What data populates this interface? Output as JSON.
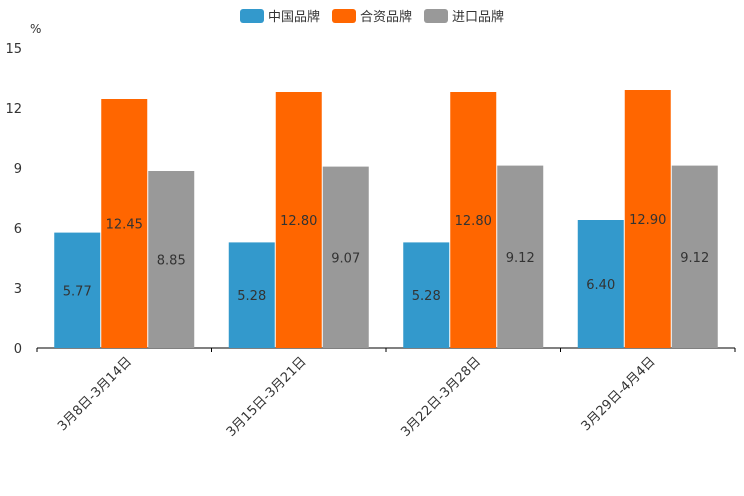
{
  "chart_data": {
    "type": "bar",
    "unit": "%",
    "categories": [
      "3月8日-3月14日",
      "3月15日-3月21日",
      "3月22日-3月28日",
      "3月29日-4月4日"
    ],
    "series": [
      {
        "name": "中国品牌",
        "color": "#3399cc",
        "values": [
          5.77,
          5.28,
          5.28,
          6.4
        ],
        "labels": [
          "5.77",
          "5.28",
          "5.28",
          "6.40"
        ]
      },
      {
        "name": "合资品牌",
        "color": "#ff6600",
        "values": [
          12.45,
          12.8,
          12.8,
          12.9
        ],
        "labels": [
          "12.45",
          "12.80",
          "12.80",
          "12.90"
        ]
      },
      {
        "name": "进口品牌",
        "color": "#999999",
        "values": [
          8.85,
          9.07,
          9.12,
          9.12
        ],
        "labels": [
          "8.85",
          "9.07",
          "9.12",
          "9.12"
        ]
      }
    ],
    "ylim": [
      0,
      15
    ],
    "yticks": [
      "0",
      "3",
      "6",
      "9",
      "12",
      "15"
    ],
    "legend_position": "top-center"
  }
}
